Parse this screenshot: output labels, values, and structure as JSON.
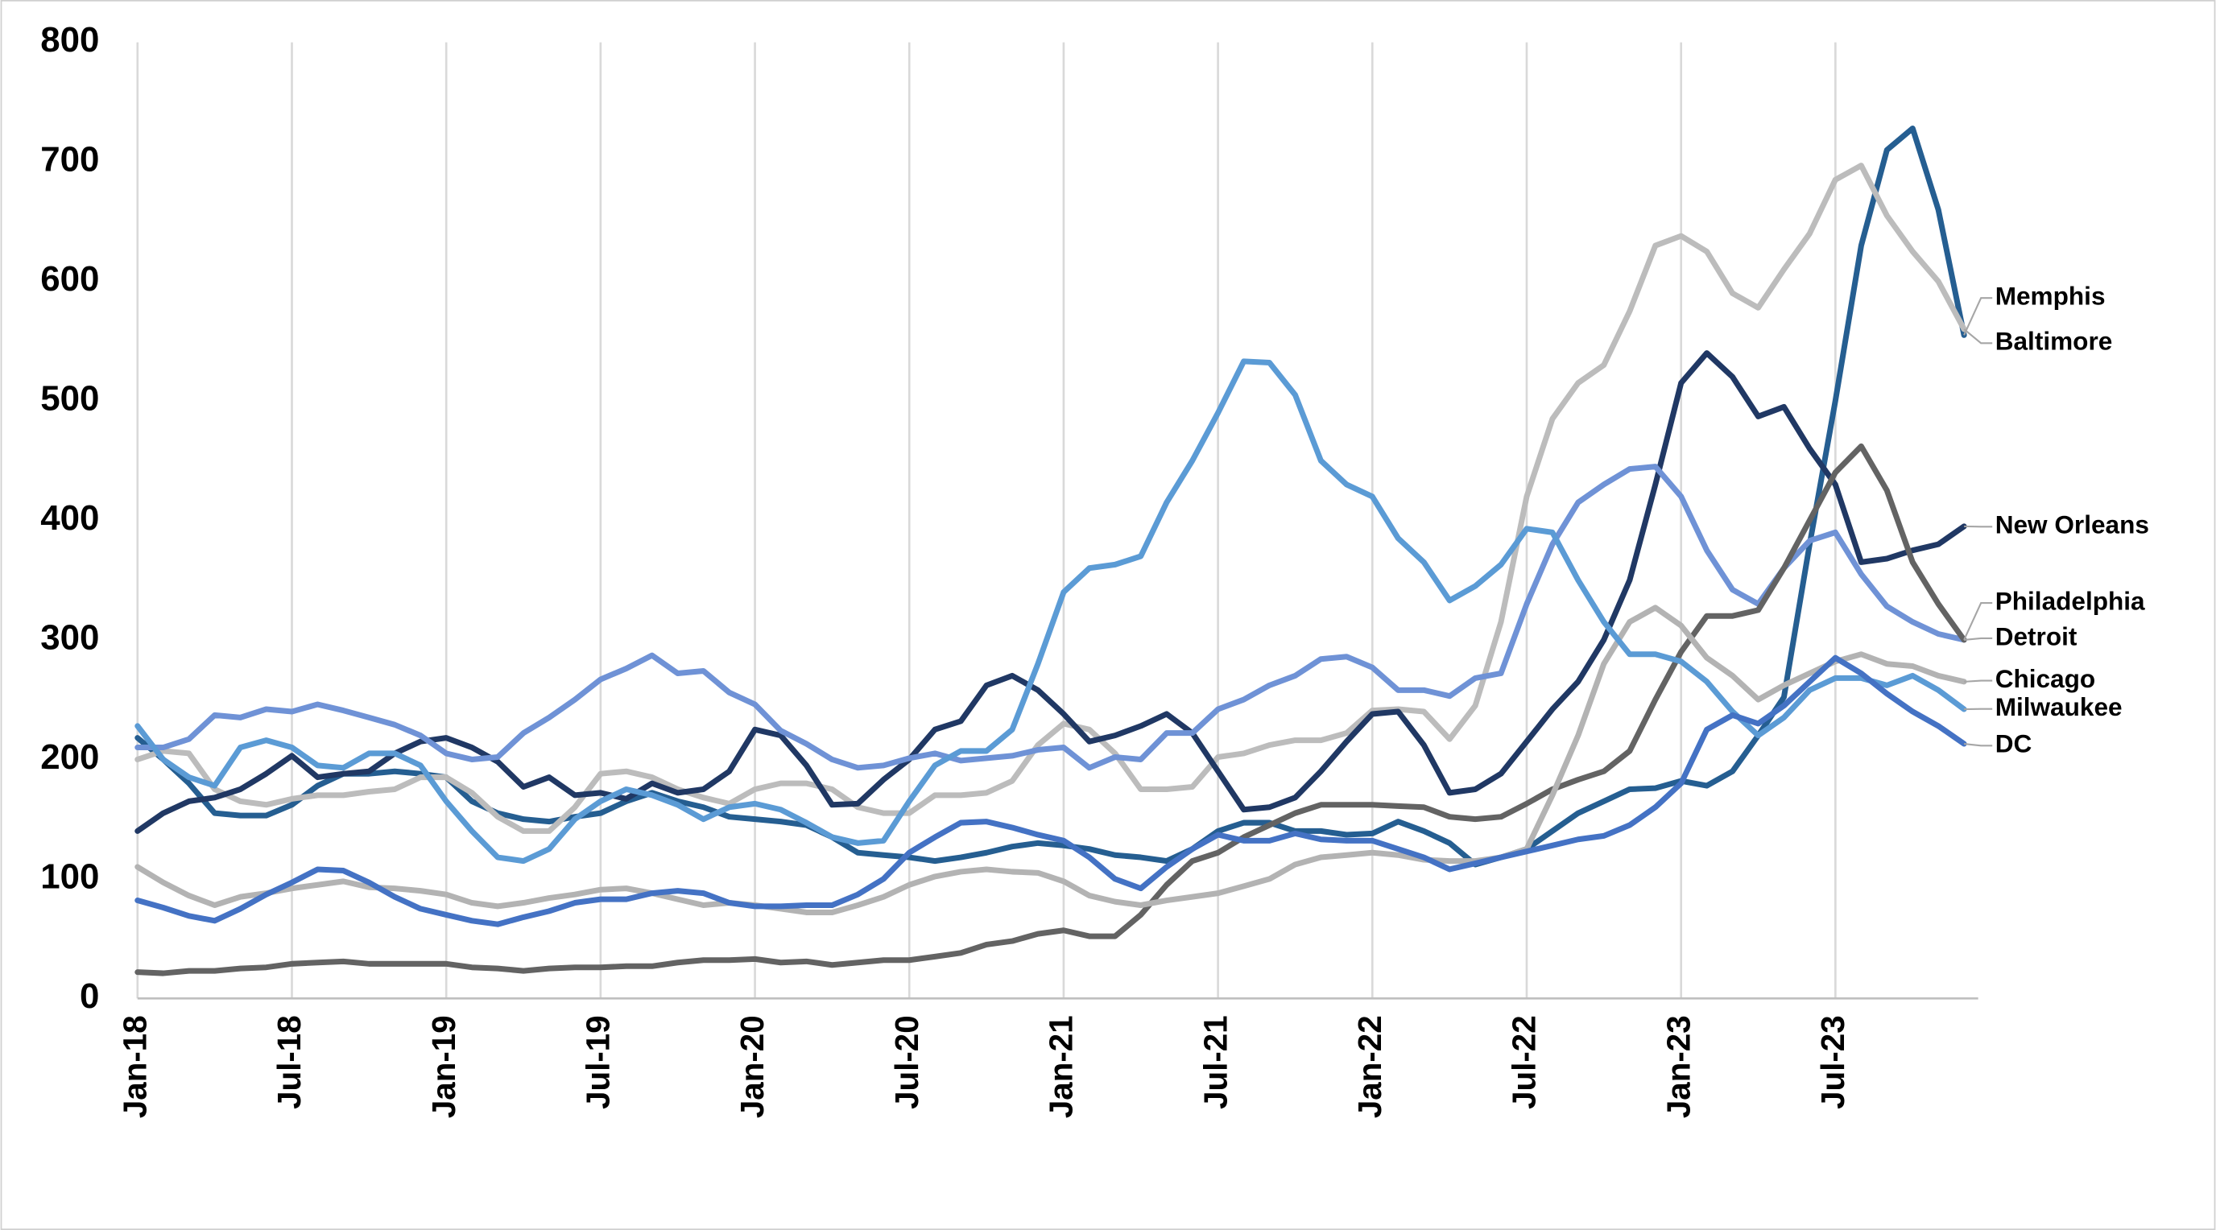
{
  "chart_data": {
    "type": "line",
    "categories": [
      "Jan-18",
      null,
      null,
      null,
      null,
      null,
      "Jul-18",
      null,
      null,
      null,
      null,
      null,
      "Jan-19",
      null,
      null,
      null,
      null,
      null,
      "Jul-19",
      null,
      null,
      null,
      null,
      null,
      "Jan-20",
      null,
      null,
      null,
      null,
      null,
      "Jul-20",
      null,
      null,
      null,
      null,
      null,
      "Jan-21",
      null,
      null,
      null,
      null,
      null,
      "Jul-21",
      null,
      null,
      null,
      null,
      null,
      "Jan-22",
      null,
      null,
      null,
      null,
      null,
      "Jul-22",
      null,
      null,
      null,
      null,
      null,
      "Jan-23",
      null,
      null,
      null,
      null,
      null,
      "Jul-23",
      null,
      null,
      null,
      null,
      null
    ],
    "ylim": [
      0,
      800
    ],
    "yticks": [
      0,
      100,
      200,
      300,
      400,
      500,
      600,
      700,
      800
    ],
    "xgrid": true,
    "series": [
      {
        "name": "Memphis",
        "color": "#255e91",
        "values": [
          218,
          200,
          180,
          155,
          153,
          153,
          162,
          178,
          188,
          188,
          190,
          188,
          185,
          165,
          155,
          150,
          148,
          152,
          155,
          165,
          172,
          165,
          160,
          152,
          150,
          148,
          145,
          135,
          122,
          120,
          118,
          115,
          118,
          122,
          127,
          130,
          128,
          125,
          120,
          118,
          115,
          125,
          140,
          147,
          147,
          140,
          140,
          137,
          138,
          148,
          140,
          130,
          112,
          118,
          125,
          140,
          155,
          165,
          175,
          176,
          182,
          178,
          190,
          220,
          252,
          380,
          500,
          630,
          710,
          728,
          660,
          555
        ]
      },
      {
        "name": "Baltimore",
        "color": "#bcbcbc",
        "values": [
          200,
          207,
          205,
          175,
          165,
          162,
          167,
          170,
          170,
          173,
          175,
          185,
          185,
          172,
          152,
          140,
          140,
          160,
          188,
          190,
          185,
          175,
          168,
          163,
          175,
          180,
          180,
          175,
          160,
          155,
          155,
          170,
          170,
          172,
          182,
          212,
          230,
          225,
          205,
          175,
          175,
          177,
          202,
          205,
          212,
          216,
          216,
          222,
          241,
          242,
          240,
          217,
          245,
          315,
          420,
          485,
          515,
          530,
          575,
          630,
          638,
          625,
          590,
          578,
          610,
          640,
          685,
          697,
          655,
          625,
          600,
          560
        ]
      },
      {
        "name": "New Orleans",
        "color": "#203864",
        "values": [
          140,
          155,
          165,
          168,
          175,
          188,
          203,
          185,
          188,
          190,
          205,
          215,
          218,
          210,
          198,
          177,
          185,
          170,
          172,
          167,
          180,
          172,
          175,
          190,
          225,
          220,
          195,
          162,
          163,
          183,
          200,
          225,
          232,
          262,
          270,
          258,
          238,
          215,
          220,
          228,
          238,
          222,
          190,
          158,
          160,
          168,
          190,
          215,
          238,
          240,
          212,
          172,
          175,
          188,
          215,
          242,
          265,
          300,
          350,
          430,
          515,
          540,
          520,
          487,
          495,
          460,
          430,
          365,
          368,
          375,
          380,
          395
        ]
      },
      {
        "name": "Philadelphia",
        "color": "#6f92d6",
        "values": [
          210,
          210,
          217,
          237,
          235,
          242,
          240,
          246,
          241,
          235,
          229,
          220,
          205,
          200,
          202,
          222,
          235,
          250,
          267,
          276,
          287,
          272,
          274,
          256,
          246,
          224,
          213,
          200,
          193,
          195,
          201,
          205,
          199,
          201,
          203,
          208,
          210,
          193,
          202,
          200,
          222,
          222,
          242,
          250,
          262,
          270,
          284,
          286,
          277,
          258,
          258,
          253,
          268,
          272,
          330,
          380,
          415,
          430,
          443,
          445,
          420,
          375,
          342,
          330,
          360,
          383,
          390,
          355,
          328,
          315,
          305,
          300
        ]
      },
      {
        "name": "Detroit",
        "color": "#636363",
        "values": [
          22,
          21,
          23,
          23,
          25,
          26,
          29,
          30,
          31,
          29,
          29,
          29,
          29,
          26,
          25,
          23,
          25,
          26,
          26,
          27,
          27,
          30,
          32,
          32,
          33,
          30,
          31,
          28,
          30,
          32,
          32,
          35,
          38,
          45,
          48,
          54,
          57,
          52,
          52,
          70,
          95,
          115,
          122,
          135,
          145,
          155,
          162,
          162,
          162,
          161,
          160,
          152,
          150,
          152,
          163,
          175,
          183,
          190,
          207,
          250,
          290,
          320,
          320,
          325,
          360,
          400,
          440,
          462,
          425,
          365,
          330,
          300
        ]
      },
      {
        "name": "Chicago",
        "color": "#b3b3b3",
        "values": [
          110,
          97,
          86,
          78,
          85,
          88,
          92,
          95,
          98,
          93,
          92,
          90,
          87,
          80,
          77,
          80,
          84,
          87,
          91,
          92,
          88,
          83,
          78,
          80,
          78,
          75,
          72,
          72,
          78,
          85,
          95,
          102,
          106,
          108,
          106,
          105,
          98,
          86,
          81,
          78,
          82,
          85,
          88,
          94,
          100,
          112,
          118,
          120,
          122,
          120,
          116,
          115,
          115,
          118,
          125,
          170,
          220,
          280,
          315,
          327,
          312,
          285,
          270,
          250,
          262,
          272,
          282,
          288,
          280,
          278,
          270,
          265
        ]
      },
      {
        "name": "Milwaukee",
        "color": "#5b9bd5",
        "values": [
          228,
          200,
          185,
          178,
          210,
          216,
          210,
          195,
          193,
          205,
          205,
          195,
          165,
          140,
          118,
          115,
          125,
          150,
          165,
          175,
          170,
          162,
          150,
          160,
          163,
          158,
          147,
          135,
          130,
          132,
          165,
          195,
          207,
          207,
          225,
          280,
          340,
          360,
          363,
          370,
          415,
          450,
          490,
          533,
          532,
          505,
          450,
          430,
          420,
          385,
          365,
          333,
          345,
          363,
          393,
          390,
          350,
          315,
          288,
          288,
          282,
          265,
          240,
          220,
          235,
          258,
          268,
          268,
          262,
          270,
          258,
          242
        ]
      },
      {
        "name": "DC",
        "color": "#4472c4",
        "values": [
          82,
          76,
          69,
          65,
          75,
          87,
          97,
          108,
          107,
          97,
          85,
          75,
          70,
          65,
          62,
          68,
          73,
          80,
          83,
          83,
          88,
          90,
          88,
          80,
          77,
          77,
          78,
          78,
          87,
          100,
          122,
          135,
          147,
          148,
          143,
          137,
          132,
          118,
          100,
          92,
          110,
          125,
          137,
          132,
          132,
          138,
          133,
          132,
          132,
          125,
          118,
          108,
          113,
          118,
          123,
          128,
          133,
          136,
          145,
          160,
          180,
          225,
          237,
          230,
          245,
          265,
          285,
          272,
          255,
          240,
          228,
          213
        ]
      }
    ]
  }
}
